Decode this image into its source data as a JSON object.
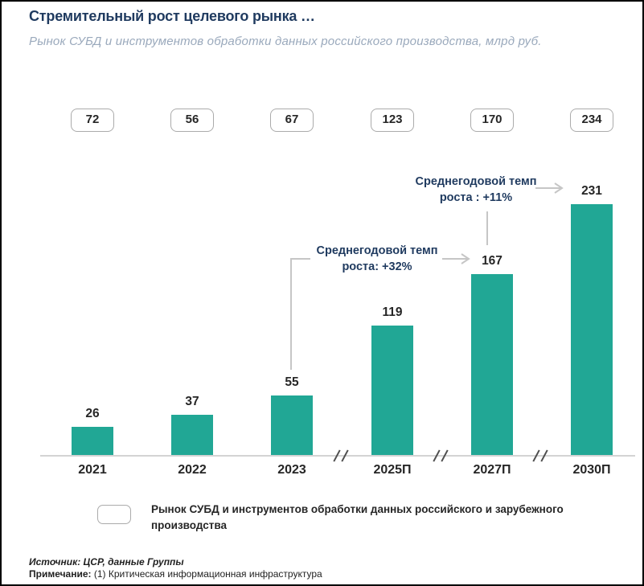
{
  "header": {
    "title": "Стремительный рост целевого рынка …",
    "subtitle": "Рынок СУБД и инструментов обработки данных российского производства, млрд руб."
  },
  "chart_data": {
    "type": "bar",
    "title": "Рынок СУБД и инструментов обработки данных российского производства, млрд руб.",
    "categories": [
      "2021",
      "2022",
      "2023",
      "2025П",
      "2027П",
      "2030П"
    ],
    "series": [
      {
        "name": "Рынок СУБД и инструментов обработки данных российского производства",
        "values": [
          26,
          37,
          55,
          119,
          167,
          231
        ]
      },
      {
        "name": "Рынок СУБД и инструментов обработки данных российского и зарубежного производства",
        "values": [
          72,
          56,
          67,
          123,
          170,
          234
        ]
      }
    ],
    "ylim": [
      0,
      240
    ],
    "grid": false,
    "legend_position": "bottom",
    "bar_color": "#21A795",
    "axis_breaks_between": [
      [
        "2023",
        "2025П"
      ],
      [
        "2025П",
        "2027П"
      ],
      [
        "2027П",
        "2030П"
      ]
    ],
    "annotations": [
      {
        "text": "Среднегодовой темп роста: +32%",
        "from_category": "2023",
        "to_category": "2027П"
      },
      {
        "text": "Среднегодовой темп роста : +11%",
        "from_category": "2027П",
        "to_category": "2030П"
      }
    ]
  },
  "annotations": {
    "cagr_32": "Среднегодовой темп роста: +32%",
    "cagr_11": "Среднегодовой темп роста : +11%"
  },
  "legend": {
    "label": "Рынок СУБД и инструментов обработки данных российского и зарубежного производства"
  },
  "footer": {
    "source": "Источник: ЦСР, данные Группы",
    "note_label": "Примечание:",
    "note_text": "(1) Критическая информационная инфраструктура"
  },
  "colors": {
    "bar": "#21A795",
    "title": "#1F3A5F",
    "subtitle": "#9AA9BC",
    "connector": "#C6C6C6",
    "axis": "#D4D4D4",
    "text": "#262626"
  }
}
